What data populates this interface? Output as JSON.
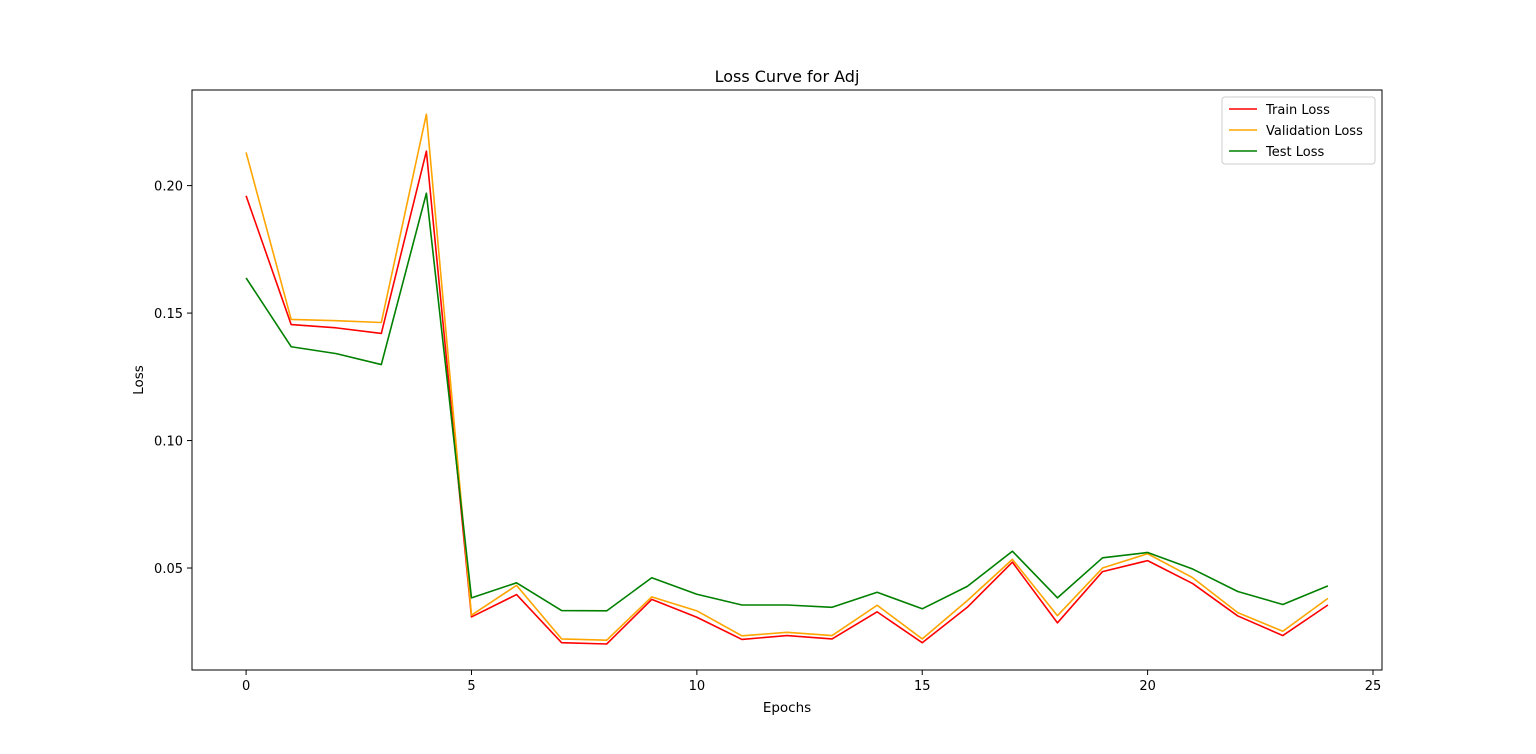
{
  "chart_data": {
    "type": "line",
    "title": "Loss Curve for Adj",
    "xlabel": "Epochs",
    "ylabel": "Loss",
    "xlim": [
      -1.2,
      25.2
    ],
    "ylim": [
      0.01,
      0.2375
    ],
    "x_ticks": [
      0,
      5,
      10,
      15,
      20,
      25
    ],
    "y_ticks": [
      0.05,
      0.1,
      0.15,
      0.2
    ],
    "x_tick_labels": [
      "0",
      "5",
      "10",
      "15",
      "20",
      "25"
    ],
    "y_tick_labels": [
      "0.05",
      "0.10",
      "0.15",
      "0.20"
    ],
    "grid": false,
    "legend_position": "top-right",
    "x": [
      0,
      1,
      2,
      3,
      4,
      5,
      6,
      7,
      8,
      9,
      10,
      11,
      12,
      13,
      14,
      15,
      16,
      17,
      18,
      19,
      20,
      21,
      22,
      23,
      24
    ],
    "series": [
      {
        "name": "Train Loss",
        "color": "#ff0000",
        "values": [
          0.196,
          0.1455,
          0.1442,
          0.142,
          0.2135,
          0.0308,
          0.0396,
          0.0207,
          0.0202,
          0.0377,
          0.0307,
          0.022,
          0.0235,
          0.0222,
          0.0328,
          0.0207,
          0.0346,
          0.0523,
          0.0285,
          0.0486,
          0.0529,
          0.0439,
          0.0312,
          0.0235,
          0.0355
        ]
      },
      {
        "name": "Validation Loss",
        "color": "#ffa500",
        "values": [
          0.213,
          0.1475,
          0.147,
          0.1463,
          0.228,
          0.0315,
          0.0432,
          0.0222,
          0.0217,
          0.0387,
          0.0332,
          0.0234,
          0.0248,
          0.0235,
          0.0354,
          0.0222,
          0.0372,
          0.0534,
          0.0313,
          0.05,
          0.0556,
          0.0462,
          0.0325,
          0.0252,
          0.0381
        ]
      },
      {
        "name": "Test Loss",
        "color": "#008000",
        "values": [
          0.1638,
          0.1368,
          0.1341,
          0.1298,
          0.197,
          0.0383,
          0.0442,
          0.0333,
          0.0332,
          0.0462,
          0.0397,
          0.0355,
          0.0355,
          0.0346,
          0.0405,
          0.034,
          0.0428,
          0.0566,
          0.0383,
          0.054,
          0.0561,
          0.0496,
          0.0408,
          0.0357,
          0.043
        ]
      }
    ]
  }
}
